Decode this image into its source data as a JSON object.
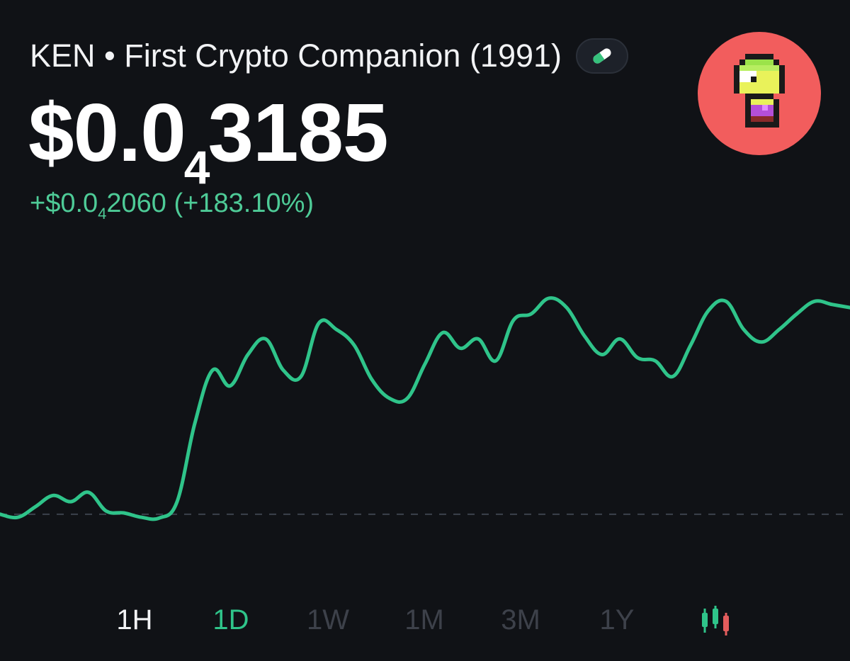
{
  "header": {
    "title": "KEN • First Crypto Companion (1991)",
    "badge_icon": "pill-icon",
    "avatar_icon": "pixel-character-avatar"
  },
  "price": {
    "prefix": "$0.0",
    "zeros_subscript": "4",
    "digits": "3185"
  },
  "change": {
    "prefix": "+$0.0",
    "zeros_subscript": "4",
    "digits": "2060",
    "percent": "(+183.10%)",
    "color": "#4ecb97"
  },
  "chart_data": {
    "type": "line",
    "x": [
      0,
      1,
      2,
      3,
      4,
      5,
      6,
      7,
      8,
      9,
      10,
      11,
      12,
      13,
      14,
      15,
      16,
      17,
      18,
      19,
      20,
      21,
      22,
      23,
      24,
      25,
      26,
      27,
      28,
      29,
      30,
      31,
      32,
      33,
      34,
      35,
      36,
      37,
      38,
      39,
      40,
      41,
      42,
      43,
      44,
      45,
      46,
      47,
      48
    ],
    "series": [
      {
        "values": [
          1.0,
          0.95,
          1.12,
          1.3,
          1.2,
          1.35,
          1.05,
          1.02,
          0.95,
          0.94,
          1.2,
          2.45,
          3.3,
          3.05,
          3.55,
          3.8,
          3.3,
          3.2,
          4.05,
          3.95,
          3.7,
          3.15,
          2.85,
          2.85,
          3.4,
          3.9,
          3.65,
          3.8,
          3.45,
          4.1,
          4.2,
          4.45,
          4.3,
          3.85,
          3.55,
          3.8,
          3.5,
          3.45,
          3.2,
          3.7,
          4.25,
          4.4,
          3.95,
          3.75,
          3.95,
          4.2,
          4.4,
          4.35,
          4.3
        ],
        "color": "#2fc48a"
      }
    ],
    "baseline": 1.0,
    "baseline_style": "dashed",
    "ylim": [
      0.5,
      4.8
    ],
    "grid": false
  },
  "time_ranges": [
    {
      "label": "1H",
      "state": "selected-white"
    },
    {
      "label": "1D",
      "state": "selected-green"
    },
    {
      "label": "1W",
      "state": "inactive"
    },
    {
      "label": "1M",
      "state": "inactive"
    },
    {
      "label": "3M",
      "state": "inactive"
    },
    {
      "label": "1Y",
      "state": "inactive"
    }
  ],
  "chart_toggle_icon": "candlestick-icon",
  "colors": {
    "background": "#101216",
    "accent_green": "#2fc48a",
    "inactive": "#3d414a",
    "avatar_bg": "#f25d5d",
    "candle_red": "#e35d5d"
  }
}
